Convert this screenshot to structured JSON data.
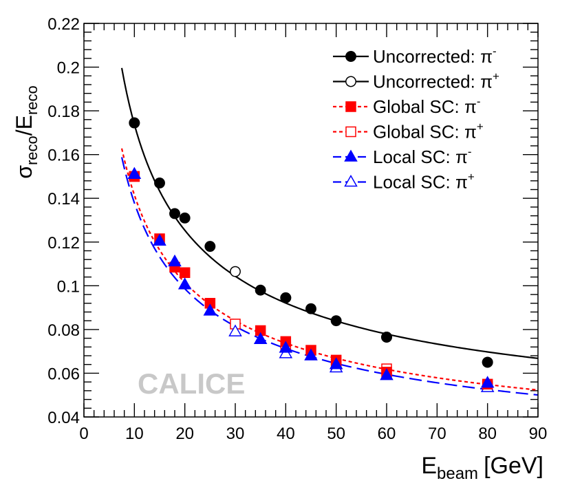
{
  "chart_data": {
    "type": "scatter",
    "title": "",
    "xlabel": "E",
    "xlabel_sub": "beam",
    "xlabel_unit": "[GeV]",
    "ylabel": "σ",
    "ylabel_sub1": "reco",
    "ylabel_mid": "/E",
    "ylabel_sub2": "reco",
    "xlim": [
      0,
      90
    ],
    "ylim": [
      0.04,
      0.22
    ],
    "xticks": [
      0,
      10,
      20,
      30,
      40,
      50,
      60,
      70,
      80,
      90
    ],
    "yticks": [
      0.04,
      0.06,
      0.08,
      0.1,
      0.12,
      0.14,
      0.16,
      0.18,
      0.2,
      0.22
    ],
    "watermark": "CALICE",
    "legend_position": "top-right",
    "series": [
      {
        "name": "Uncorrected: π⁻",
        "legend_main": "Uncorrected: π",
        "legend_sup": "-",
        "color": "#000000",
        "marker": "circle-filled",
        "line_style": "solid",
        "x": [
          10,
          15,
          18,
          20,
          25,
          35,
          40,
          45,
          50,
          60,
          80
        ],
        "y": [
          0.1745,
          0.147,
          0.133,
          0.131,
          0.118,
          0.098,
          0.0945,
          0.0895,
          0.084,
          0.0765,
          0.065
        ]
      },
      {
        "name": "Uncorrected: π⁺",
        "legend_main": "Uncorrected: π",
        "legend_sup": "+",
        "color": "#000000",
        "marker": "circle-open",
        "line_style": "solid",
        "x": [
          10,
          30,
          40,
          60,
          80
        ],
        "y": [
          0.1745,
          0.1065,
          0.0945,
          0.0765,
          0.065
        ]
      },
      {
        "name": "Global SC: π⁻",
        "legend_main": "Global SC: π",
        "legend_sup": "-",
        "color": "#ff0000",
        "marker": "square-filled",
        "line_style": "dotted",
        "x": [
          10,
          15,
          18,
          20,
          25,
          35,
          40,
          45,
          50,
          60,
          80
        ],
        "y": [
          0.15,
          0.1215,
          0.1085,
          0.106,
          0.092,
          0.0795,
          0.0745,
          0.0705,
          0.066,
          0.0605,
          0.055
        ]
      },
      {
        "name": "Global SC: π⁺",
        "legend_main": "Global SC: π",
        "legend_sup": "+",
        "color": "#ff0000",
        "marker": "square-open",
        "line_style": "dotted",
        "x": [
          10,
          30,
          40,
          50,
          60,
          80
        ],
        "y": [
          0.15,
          0.0825,
          0.072,
          0.064,
          0.062,
          0.054
        ]
      },
      {
        "name": "Local SC: π⁻",
        "legend_main": "Local SC: π",
        "legend_sup": "-",
        "color": "#0000ff",
        "marker": "triangle-filled",
        "line_style": "dashed",
        "x": [
          10,
          15,
          18,
          20,
          25,
          35,
          40,
          45,
          50,
          60,
          80
        ],
        "y": [
          0.151,
          0.1205,
          0.111,
          0.1005,
          0.0885,
          0.0755,
          0.0715,
          0.068,
          0.064,
          0.059,
          0.0555
        ]
      },
      {
        "name": "Local SC: π⁺",
        "legend_main": "Local SC: π",
        "legend_sup": "+",
        "color": "#0000ff",
        "marker": "triangle-open",
        "line_style": "dashed",
        "x": [
          10,
          30,
          40,
          50,
          80
        ],
        "y": [
          0.151,
          0.079,
          0.069,
          0.0625,
          0.0535
        ]
      }
    ],
    "fits": [
      {
        "name": "Uncorrected fit",
        "color": "#000000",
        "line_style": "solid",
        "x_range": [
          7.5,
          90
        ],
        "a": 0.538,
        "b": 0.0353,
        "c": 0.0
      },
      {
        "name": "Global SC fit",
        "color": "#ff0000",
        "line_style": "dotted",
        "x_range": [
          7.5,
          90
        ],
        "a": 0.441,
        "b": 0.024,
        "c": 0.0
      },
      {
        "name": "Local SC fit",
        "color": "#0000ff",
        "line_style": "dashed",
        "x_range": [
          7.5,
          90
        ],
        "a": 0.431,
        "b": 0.021,
        "c": 0.0
      }
    ]
  }
}
